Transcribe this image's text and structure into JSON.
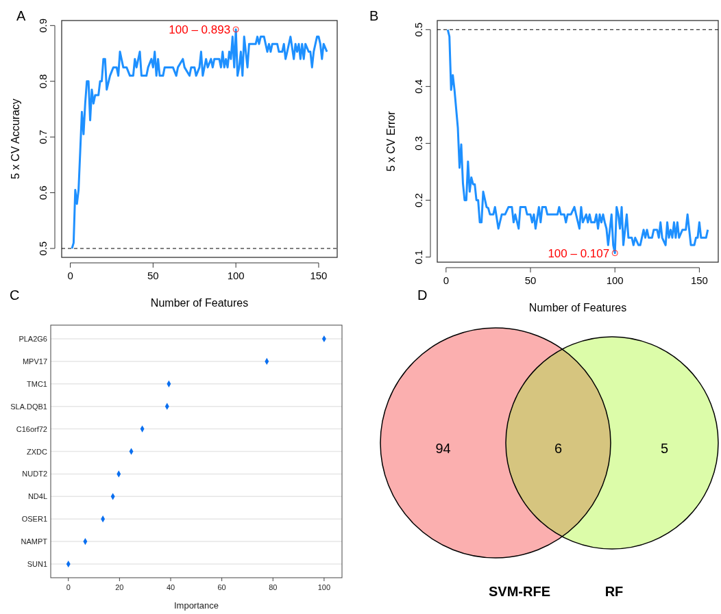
{
  "chart_data": [
    {
      "type": "line",
      "ylabel": "5 x CV Accuracy",
      "xlabel": "Number of Features",
      "xlim": [
        -5.2,
        161.2
      ],
      "ylim": [
        0.484,
        0.909
      ],
      "xticks": [
        0,
        50,
        100,
        150
      ],
      "yticks": [
        0.5,
        0.6,
        0.7,
        0.8,
        0.9
      ],
      "series": [
        {
          "color": "#1e90ff",
          "x": [
            1,
            2,
            3,
            4,
            5,
            6,
            7,
            8,
            9,
            10,
            11,
            12,
            13,
            14,
            15,
            17,
            18,
            19,
            20,
            21,
            22,
            24,
            26,
            28,
            29,
            30,
            32,
            34,
            36,
            38,
            39,
            40,
            42,
            43,
            46,
            47,
            49,
            50,
            51,
            52,
            53,
            54,
            56,
            57,
            62,
            64,
            65,
            68,
            69,
            72,
            73,
            75,
            76,
            78,
            79,
            80,
            82,
            83,
            85,
            86,
            87,
            90,
            91,
            92,
            93,
            94,
            95,
            96,
            97,
            98,
            99,
            100,
            101,
            102,
            103,
            104,
            105,
            107,
            108,
            112,
            113,
            114,
            115,
            117,
            119,
            120,
            121,
            122,
            125,
            126,
            128,
            129,
            130,
            131,
            133,
            135,
            136,
            137,
            138,
            139,
            140,
            141,
            142,
            144,
            145,
            146,
            147,
            149,
            150,
            151,
            152,
            153,
            155
          ],
          "values": [
            0.5,
            0.51,
            0.605,
            0.58,
            0.605,
            0.675,
            0.745,
            0.705,
            0.76,
            0.8,
            0.8,
            0.73,
            0.785,
            0.76,
            0.775,
            0.775,
            0.8,
            0.8,
            0.84,
            0.84,
            0.785,
            0.81,
            0.825,
            0.825,
            0.81,
            0.853,
            0.825,
            0.825,
            0.81,
            0.81,
            0.84,
            0.825,
            0.853,
            0.81,
            0.81,
            0.825,
            0.84,
            0.825,
            0.853,
            0.81,
            0.84,
            0.81,
            0.81,
            0.825,
            0.825,
            0.81,
            0.825,
            0.84,
            0.825,
            0.81,
            0.825,
            0.825,
            0.81,
            0.825,
            0.853,
            0.81,
            0.84,
            0.825,
            0.84,
            0.825,
            0.84,
            0.84,
            0.825,
            0.853,
            0.825,
            0.84,
            0.825,
            0.853,
            0.84,
            0.88,
            0.825,
            0.893,
            0.81,
            0.825,
            0.853,
            0.81,
            0.88,
            0.825,
            0.867,
            0.867,
            0.88,
            0.867,
            0.88,
            0.88,
            0.853,
            0.867,
            0.853,
            0.867,
            0.867,
            0.853,
            0.853,
            0.867,
            0.84,
            0.853,
            0.88,
            0.84,
            0.867,
            0.853,
            0.867,
            0.84,
            0.867,
            0.84,
            0.867,
            0.853,
            0.853,
            0.825,
            0.853,
            0.88,
            0.88,
            0.867,
            0.84,
            0.867,
            0.853
          ]
        }
      ],
      "ref_lines": [
        {
          "axis": "y",
          "value": 0.5,
          "color": "#000000",
          "line_style": "dashed"
        }
      ],
      "annotations": [
        "A",
        {
          "text": "100 – 0.893",
          "x": 100,
          "y": 0.893
        }
      ]
    },
    {
      "type": "line",
      "ylabel": "5 x CV Error",
      "xlabel": "Number of Features",
      "xlim": [
        -5.2,
        161.2
      ],
      "ylim": [
        0.091,
        0.516
      ],
      "xticks": [
        0,
        50,
        100,
        150
      ],
      "yticks": [
        0.1,
        0.2,
        0.3,
        0.4,
        0.5
      ],
      "series": [
        {
          "color": "#1e90ff",
          "x": [
            1,
            2,
            3,
            4,
            5,
            7,
            8,
            9,
            10,
            11,
            12,
            13,
            14,
            15,
            16,
            17,
            18,
            19,
            20,
            21,
            22,
            24,
            25,
            26,
            28,
            29,
            31,
            33,
            35,
            37,
            39,
            40,
            41,
            43,
            44,
            47,
            48,
            50,
            51,
            52,
            53,
            55,
            56,
            57,
            59,
            60,
            66,
            67,
            68,
            70,
            71,
            72,
            74,
            76,
            77,
            79,
            80,
            81,
            83,
            84,
            85,
            86,
            88,
            89,
            90,
            91,
            92,
            93,
            94,
            95,
            96,
            98,
            99,
            100,
            101,
            102,
            103,
            104,
            105,
            107,
            108,
            110,
            111,
            112,
            114,
            115,
            117,
            118,
            119,
            120,
            122,
            123,
            125,
            126,
            127,
            128,
            130,
            131,
            132,
            133,
            134,
            135,
            136,
            137,
            138,
            140,
            142,
            143,
            144,
            145,
            147,
            148,
            149,
            150,
            151,
            154,
            155
          ],
          "values": [
            0.5,
            0.488,
            0.394,
            0.42,
            0.394,
            0.327,
            0.257,
            0.298,
            0.23,
            0.2,
            0.2,
            0.268,
            0.215,
            0.24,
            0.228,
            0.228,
            0.2,
            0.2,
            0.161,
            0.161,
            0.215,
            0.188,
            0.186,
            0.175,
            0.175,
            0.188,
            0.15,
            0.175,
            0.175,
            0.188,
            0.188,
            0.161,
            0.175,
            0.15,
            0.188,
            0.188,
            0.175,
            0.175,
            0.161,
            0.175,
            0.15,
            0.188,
            0.161,
            0.188,
            0.188,
            0.175,
            0.175,
            0.188,
            0.175,
            0.175,
            0.161,
            0.175,
            0.175,
            0.188,
            0.175,
            0.15,
            0.188,
            0.161,
            0.175,
            0.161,
            0.175,
            0.161,
            0.161,
            0.175,
            0.15,
            0.175,
            0.161,
            0.175,
            0.161,
            0.15,
            0.121,
            0.175,
            0.121,
            0.107,
            0.188,
            0.175,
            0.15,
            0.188,
            0.121,
            0.175,
            0.134,
            0.134,
            0.121,
            0.134,
            0.121,
            0.121,
            0.148,
            0.134,
            0.148,
            0.134,
            0.134,
            0.148,
            0.148,
            0.134,
            0.161,
            0.134,
            0.121,
            0.161,
            0.134,
            0.148,
            0.134,
            0.161,
            0.134,
            0.161,
            0.134,
            0.148,
            0.148,
            0.175,
            0.148,
            0.121,
            0.121,
            0.134,
            0.134,
            0.161,
            0.134,
            0.134,
            0.148
          ]
        }
      ],
      "ref_lines": [
        {
          "axis": "y",
          "value": 0.5,
          "color": "#000000",
          "line_style": "dashed"
        }
      ],
      "annotations": [
        "B",
        {
          "text": "100 – 0.107",
          "x": 100,
          "y": 0.107
        }
      ]
    },
    {
      "type": "scatter",
      "orientation": "horizontal",
      "xlabel": "Importance",
      "marker": "diamond",
      "grid": "y",
      "tick_labels": "xy",
      "categories": [
        "PLA2G6",
        "MPV17",
        "TMC1",
        "SLA.DQB1",
        "C16orf72",
        "ZXDC",
        "NUDT2",
        "ND4L",
        "OSER1",
        "NAMPT",
        "SUN1"
      ],
      "xlim": [
        -6.9,
        107
      ],
      "xticks": [
        0,
        20,
        40,
        60,
        80,
        100
      ],
      "series": [
        {
          "color": "#0a6ff0",
          "values": [
            100,
            77.6,
            39.3,
            38.6,
            28.9,
            24.6,
            19.7,
            17.4,
            13.5,
            6.6,
            0
          ]
        }
      ],
      "annotations": [
        "C"
      ]
    },
    {
      "type": "other",
      "data_labels": true,
      "categories": [
        "SVM-RFE",
        null,
        "RF"
      ],
      "values": [
        94,
        6,
        5
      ],
      "colors": [
        "#fbafaf",
        "#d6c57f",
        "#dcfca9"
      ],
      "annotations": [
        "D"
      ]
    }
  ]
}
